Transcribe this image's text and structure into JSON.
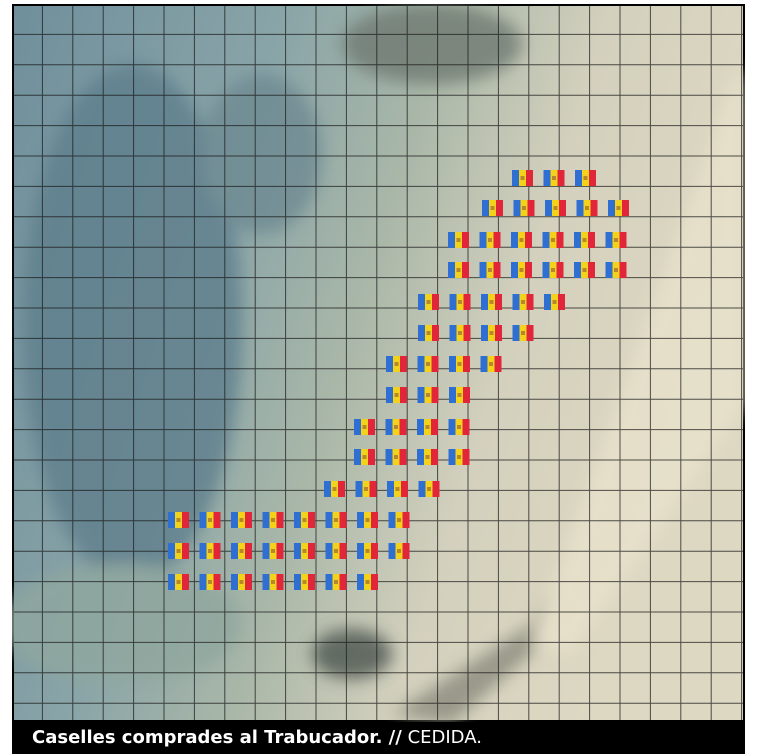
{
  "caption": {
    "title": "Caselles comprades al Trabucador. //",
    "credit": "CEDIDA."
  }
}
